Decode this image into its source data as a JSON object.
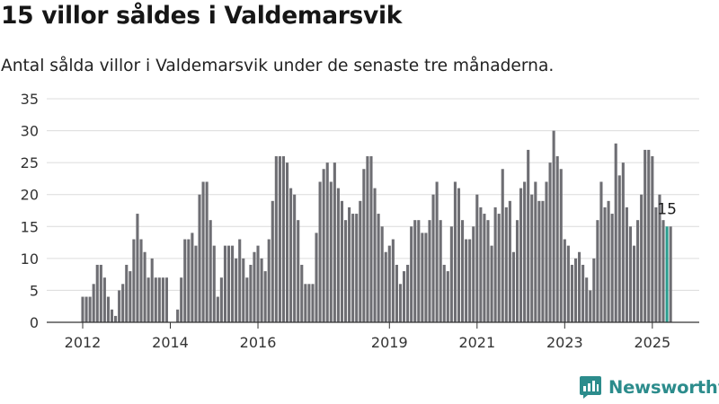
{
  "title": "15 villor såldes i Valdemarsvik",
  "subtitle": "Antal sålda villor i Valdemarsvik under de senaste tre månaderna.",
  "brand": {
    "name": "Newsworthy",
    "icon": "newsworthy-logo-icon"
  },
  "colors": {
    "bar": "#6e6e73",
    "highlight": "#2a9d8f",
    "grid": "#dcdcdc",
    "axis": "#333333",
    "text": "#333333"
  },
  "chart_data": {
    "type": "bar",
    "title": "15 villor såldes i Valdemarsvik",
    "subtitle": "Antal sålda villor i Valdemarsvik under de senaste tre månaderna.",
    "xlabel": "",
    "ylabel": "",
    "ylim": [
      0,
      35
    ],
    "y_ticks": [
      0,
      5,
      10,
      15,
      20,
      25,
      30,
      35
    ],
    "x_tick_labels": [
      "2012",
      "2014",
      "2016",
      "2019",
      "2021",
      "2023",
      "2025"
    ],
    "grid": true,
    "x_start": "2012-01",
    "frequency": "monthly",
    "values": [
      4,
      4,
      4,
      6,
      9,
      9,
      7,
      4,
      2,
      1,
      5,
      6,
      9,
      8,
      13,
      17,
      13,
      11,
      7,
      10,
      7,
      7,
      7,
      7,
      0,
      0,
      2,
      7,
      13,
      13,
      14,
      12,
      20,
      22,
      22,
      16,
      12,
      4,
      7,
      12,
      12,
      12,
      10,
      13,
      10,
      7,
      9,
      11,
      12,
      10,
      8,
      13,
      19,
      26,
      26,
      26,
      25,
      21,
      20,
      16,
      9,
      6,
      6,
      6,
      14,
      22,
      24,
      25,
      22,
      25,
      21,
      19,
      16,
      18,
      17,
      17,
      19,
      24,
      26,
      26,
      21,
      17,
      15,
      11,
      12,
      13,
      9,
      6,
      8,
      9,
      15,
      16,
      16,
      14,
      14,
      16,
      20,
      22,
      16,
      9,
      8,
      15,
      22,
      21,
      16,
      13,
      13,
      15,
      20,
      18,
      17,
      16,
      12,
      18,
      17,
      24,
      18,
      19,
      11,
      16,
      21,
      22,
      27,
      20,
      22,
      19,
      19,
      22,
      25,
      30,
      26,
      24,
      13,
      12,
      9,
      10,
      11,
      9,
      7,
      5,
      10,
      16,
      22,
      18,
      19,
      17,
      28,
      23,
      25,
      18,
      15,
      12,
      16,
      20,
      27,
      27,
      26,
      18,
      20,
      16,
      15,
      15
    ],
    "highlight": {
      "index": 160,
      "value": 15,
      "label": "15"
    }
  }
}
